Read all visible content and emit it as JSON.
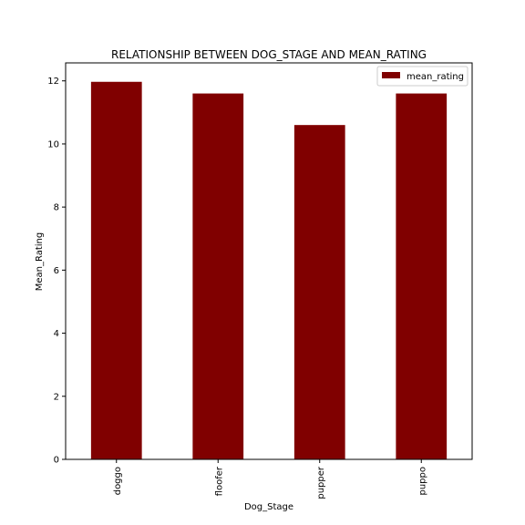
{
  "chart_data": {
    "type": "bar",
    "title": "RELATIONSHIP BETWEEN DOG_STAGE AND MEAN_RATING",
    "xlabel": "Dog_Stage",
    "ylabel": "Mean_Rating",
    "categories": [
      "doggo",
      "floofer",
      "pupper",
      "puppo"
    ],
    "series": [
      {
        "name": "mean_rating",
        "values": [
          11.97,
          11.6,
          10.6,
          11.6
        ],
        "color": "#800000"
      }
    ],
    "ylim": [
      0,
      12.57
    ],
    "yticks": [
      0,
      2,
      4,
      6,
      8,
      10,
      12
    ],
    "grid": false,
    "legend_position": "top-right"
  }
}
